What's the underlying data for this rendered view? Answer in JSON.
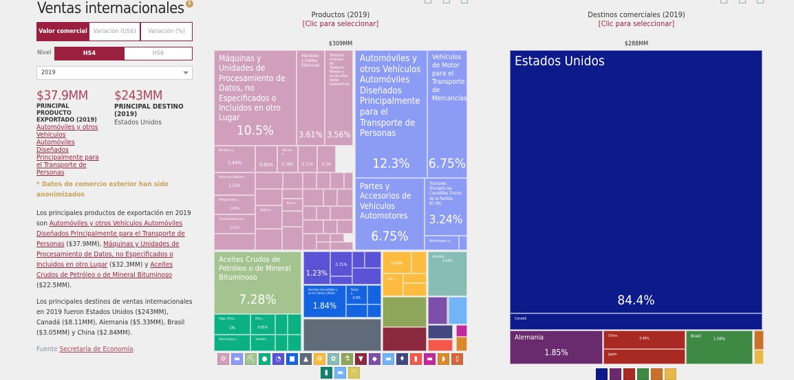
{
  "sidebar": {
    "title": "Ventas internacionales",
    "info_icon": "info-icon",
    "value_tabs": [
      {
        "label": "Valor comercial",
        "active": true
      },
      {
        "label": "Variación (US$)",
        "active": false
      },
      {
        "label": "Variación (%)",
        "active": false
      }
    ],
    "level_label": "Nivel",
    "level_tabs": [
      {
        "label": "HS4",
        "active": true
      },
      {
        "label": "HS6",
        "active": false
      }
    ],
    "year_select": "2019",
    "stat1": {
      "value": "$37.9MM",
      "label": "PRINCIPAL PRODUCTO EXPORTADO (2019)",
      "link": "Automóviles y otros Vehículos Automóviles Diseñados Principalmente para el Transporte de Personas"
    },
    "stat2": {
      "value": "$243MM",
      "label": "PRINCIPAL DESTINO (2019)",
      "detail": "Estados Unidos"
    },
    "note": "* Datos de comercio exterior han sido anonimizados",
    "p1": {
      "t1": "Los principales productos de exportación en 2019 son ",
      "l1": "Automóviles y otros Vehículos Automóviles Diseñados Principalmente para el Transporte de Personas",
      "t2": " ($37.9MM), ",
      "l2": "Máquinas y Unidades de Procesamiento de Datos, no Especificados o Incluidos en otro Lugar",
      "t3": " ($32.3MM) y ",
      "l3": "Aceites Crudos de Petróleo o de Mineral Bituminoso",
      "t4": " ($22.5MM)."
    },
    "p2": "Los principales destinos de ventas internacionales en 2019 fueron Estados Unidos ($243MM), Canadá ($8.11MM), Alemania ($5.33MM), Brasil ($3.05MM) y China ($2.84MM).",
    "source": {
      "label": "Fuente ",
      "link": "Secretaría de Economía",
      "end": "."
    }
  },
  "products": {
    "title": "Productos (2019)",
    "select_hint": "[Clic para seleccionar]",
    "total": "$309MM",
    "tools": [
      "table-icon",
      "image-icon",
      "document-icon"
    ],
    "tiles": [
      {
        "label": "Máquinas y Unidades de Procesamiento de Datos, no Especificados o Incluidos en otro Lugar",
        "share": "10.5%",
        "color": "#d09fbb"
      },
      {
        "label": "Alambres y Cables Eléctricos",
        "share": "3.61%",
        "color": "#d09fbb"
      },
      {
        "label": "Teléfonos, Incluidos los Teléfonos Móviles y los de otras Redes Inalámbricas",
        "share": "3.56%",
        "color": "#d09fbb"
      },
      {
        "label": "Automóviles y otros Vehículos Automóviles Diseñados Principalmente para el Transporte de Personas",
        "share": "12.3%",
        "color": "#8c9cf5"
      },
      {
        "label": "Vehículos de Motor para el Transporte de Mercancías",
        "share": "6.75%",
        "color": "#8c9cf5"
      },
      {
        "label": "Partes y Accesorios de Vehículos Automotores",
        "share": "6.75%",
        "color": "#8c9cf5"
      },
      {
        "label": "Tractores (Excepto las Carretillas Tractor de la Partida 87.09)",
        "share": "3.24%",
        "color": "#8c9cf5"
      },
      {
        "label": "Remolques y...",
        "share": "",
        "color": "#8c9cf5"
      },
      {
        "label": "Monitores y...",
        "share": "1.44%",
        "color": "#d09fbb"
      },
      {
        "label": "",
        "share": "0.82%",
        "color": "#d09fbb"
      },
      {
        "label": "Válvulas y...",
        "share": "0.79%",
        "color": "#d09fbb"
      },
      {
        "label": "",
        "share": "0.71%",
        "color": "#d09fbb"
      },
      {
        "label": "",
        "share": "0.7%",
        "color": "#d09fbb"
      },
      {
        "label": "Piezas para Motores...",
        "share": "1.23%",
        "color": "#d09fbb"
      },
      {
        "label": "Refrigeradores...",
        "share": "1.04%",
        "color": "#d09fbb"
      },
      {
        "label": "Transformadores de...",
        "share": "1.01%",
        "color": "#d09fbb"
      },
      {
        "label": "Tableros...",
        "share": "",
        "color": "#d09fbb"
      },
      {
        "label": "Barras...",
        "share": "",
        "color": "#d09fbb"
      },
      {
        "label": "Aceites Crudos de Petróleo o de Mineral Bituminoso",
        "share": "7.28%",
        "color": "#a3c48e"
      },
      {
        "label": "Higos, Piñas...",
        "share": "1%",
        "color": "#0bb083"
      },
      {
        "label": "Otros...",
        "share": "0.85%",
        "color": "#0bb083"
      },
      {
        "label": "Otros Frutos y...",
        "share": "",
        "color": "#0bb083"
      },
      {
        "label": "Tomates...",
        "share": "",
        "color": "#0bb083"
      },
      {
        "label": "",
        "share": "1.23%",
        "color": "#5b53d6"
      },
      {
        "label": "",
        "share": "0.71%",
        "color": "#5b53d6"
      },
      {
        "label": "Asientos Convertibles o no en Camas y Partes",
        "share": "1.84%",
        "color": "#1463e0"
      },
      {
        "label": "Piezas y...",
        "share": "0.6%",
        "color": "#1463e0"
      },
      {
        "label": "",
        "share": "",
        "color": "#5f6b78"
      },
      {
        "label": "",
        "share": "0.64%",
        "color": "#fbbc3f"
      },
      {
        "label": "Los...",
        "share": "",
        "color": "#fbbc3f"
      },
      {
        "label": "Alcohol...",
        "share": "0.64%",
        "color": "#87bdb4"
      },
      {
        "label": "",
        "share": "",
        "color": "#8ea65a"
      },
      {
        "label": "",
        "share": "",
        "color": "#7c4fa9"
      },
      {
        "label": "",
        "share": "",
        "color": "#72b4f5"
      },
      {
        "label": "",
        "share": "",
        "color": "#8b2a3f"
      },
      {
        "label": "",
        "share": "",
        "color": "#424980"
      },
      {
        "label": "",
        "share": "",
        "color": "#f2594a"
      },
      {
        "label": "",
        "share": "",
        "color": "#c02a9a"
      },
      {
        "label": "",
        "share": "",
        "color": "#d98a2d"
      }
    ],
    "legend": [
      {
        "icon": "machinery-icon",
        "color": "#d09fbb"
      },
      {
        "icon": "transport-icon",
        "color": "#8c9cf5"
      },
      {
        "icon": "minerals-icon",
        "color": "#a3c48e"
      },
      {
        "icon": "vegetables-icon",
        "color": "#0bb083"
      },
      {
        "icon": "instruments-icon",
        "color": "#5b53d6"
      },
      {
        "icon": "miscellaneous-icon",
        "color": "#1463e0"
      },
      {
        "icon": "metals-icon",
        "color": "#5f6b78"
      },
      {
        "icon": "plastics-icon",
        "color": "#fbbc3f"
      },
      {
        "icon": "foodstuffs-icon",
        "color": "#87bdb4"
      },
      {
        "icon": "chemicals-icon",
        "color": "#8ea65a"
      },
      {
        "icon": "textiles-icon",
        "color": "#8b2a3f"
      },
      {
        "icon": "stone-icon",
        "color": "#7c4fa9"
      },
      {
        "icon": "animals-icon",
        "color": "#72b4f5"
      },
      {
        "icon": "precious-metals-icon",
        "color": "#424980"
      },
      {
        "icon": "paper-icon",
        "color": "#f2594a"
      },
      {
        "icon": "footwear-icon",
        "color": "#c02a9a"
      },
      {
        "icon": "hides-icon",
        "color": "#d98a2d"
      },
      {
        "icon": "wood-icon",
        "color": "#d3683f"
      },
      {
        "icon": "animal-fats-icon",
        "color": "#14806e"
      },
      {
        "icon": "arms-icon",
        "color": "#72b4f5"
      },
      {
        "icon": "art-icon",
        "color": "#d8c85a"
      }
    ]
  },
  "destinations": {
    "title": "Destinos comerciales (2019)",
    "select_hint": "[Clic para seleccionar]",
    "total": "$288MM",
    "tools": [
      "table-icon",
      "image-icon",
      "document-icon"
    ],
    "tiles": [
      {
        "label": "Estados Unidos",
        "share": "84.4%",
        "color": "#0d1b8a"
      },
      {
        "label": "Canadá",
        "share": "",
        "color": "#0d1b8a"
      },
      {
        "label": "Alemania",
        "share": "1.85%",
        "color": "#6a2b6e"
      },
      {
        "label": "China",
        "share": "0.99%",
        "color": "#a82a22"
      },
      {
        "label": "Japón",
        "share": "",
        "color": "#a82a22"
      },
      {
        "label": "Brasil",
        "share": "1.06%",
        "color": "#3e8a45"
      },
      {
        "label": "",
        "share": "",
        "color": "#c8722c"
      },
      {
        "label": "",
        "share": "",
        "color": "#e6b84a"
      }
    ],
    "legend": [
      {
        "icon": "north-america-icon",
        "color": "#0d1b8a"
      },
      {
        "icon": "europe-icon",
        "color": "#6a2b6e"
      },
      {
        "icon": "asia-icon",
        "color": "#a82a22"
      },
      {
        "icon": "south-america-icon",
        "color": "#3e8a45"
      },
      {
        "icon": "africa-icon",
        "color": "#c8722c"
      },
      {
        "icon": "oceania-icon",
        "color": "#e6b84a"
      }
    ]
  }
}
